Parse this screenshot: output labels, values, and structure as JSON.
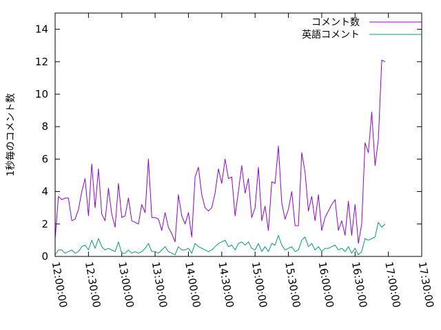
{
  "chart_data": {
    "type": "line",
    "title": "",
    "xlabel": "",
    "ylabel": "1秒毎のコメント数",
    "ylim": [
      0,
      15
    ],
    "yticks": [
      0,
      2,
      4,
      6,
      8,
      10,
      12,
      14
    ],
    "xlim": [
      "12:00:00",
      "17:30:00"
    ],
    "xticks": [
      "12:00:00",
      "12:30:00",
      "13:00:00",
      "13:30:00",
      "14:00:00",
      "14:30:00",
      "15:00:00",
      "15:30:00",
      "16:00:00",
      "16:30:00",
      "17:00:00",
      "17:30:00"
    ],
    "grid": false,
    "legend": "top-right",
    "x_start": "12:00:00",
    "x_step_minutes": 3,
    "series": [
      {
        "name": "コメント数",
        "color": "#9400d3",
        "values": [
          1.1,
          3.7,
          3.5,
          3.6,
          3.6,
          2.2,
          2.3,
          2.9,
          4.0,
          4.8,
          2.5,
          5.7,
          3.0,
          5.4,
          2.6,
          2.2,
          4.2,
          2.6,
          1.8,
          4.5,
          2.4,
          2.5,
          3.6,
          2.2,
          2.1,
          2.0,
          3.2,
          2.7,
          6.0,
          2.4,
          2.4,
          2.3,
          1.6,
          2.7,
          1.8,
          1.4,
          0.9,
          3.8,
          2.5,
          2.0,
          2.7,
          1.2,
          4.9,
          5.5,
          3.8,
          3.0,
          2.8,
          3.0,
          3.9,
          5.4,
          4.5,
          6.0,
          4.8,
          4.9,
          2.5,
          4.0,
          5.6,
          3.9,
          4.8,
          2.4,
          3.0,
          5.5,
          2.2,
          3.1,
          1.6,
          4.6,
          4.5,
          6.8,
          3.3,
          2.3,
          2.9,
          4.0,
          1.9,
          1.9,
          6.4,
          5.2,
          2.8,
          3.7,
          2.2,
          3.8,
          1.6,
          2.4,
          2.8,
          3.2,
          3.5,
          1.6,
          2.2,
          1.3,
          3.4,
          1.3,
          3.2,
          0.8,
          2.0,
          7.0,
          6.4,
          8.9,
          5.6,
          7.2,
          12.1,
          12.0
        ]
      },
      {
        "name": "英語コメント",
        "color": "#009e73",
        "values": [
          0.1,
          0.4,
          0.4,
          0.2,
          0.3,
          0.4,
          0.2,
          0.3,
          0.6,
          0.7,
          0.4,
          1.0,
          0.5,
          1.1,
          0.6,
          0.4,
          0.5,
          0.4,
          0.3,
          0.9,
          0.2,
          0.2,
          0.4,
          0.2,
          0.3,
          0.2,
          0.3,
          0.5,
          0.8,
          0.3,
          0.3,
          0.2,
          0.4,
          0.6,
          0.3,
          0.2,
          0.1,
          0.6,
          0.4,
          0.4,
          0.5,
          0.2,
          0.8,
          0.6,
          0.5,
          0.4,
          0.3,
          0.4,
          0.6,
          0.8,
          0.9,
          1.0,
          0.6,
          0.7,
          0.4,
          0.8,
          0.9,
          0.7,
          0.9,
          0.5,
          0.4,
          0.8,
          0.3,
          0.6,
          0.3,
          0.8,
          0.7,
          1.3,
          0.7,
          0.4,
          0.5,
          0.6,
          0.3,
          0.4,
          1.0,
          1.2,
          0.6,
          0.8,
          0.4,
          0.6,
          0.3,
          0.5,
          0.5,
          0.6,
          0.7,
          0.4,
          0.5,
          0.3,
          0.6,
          0.2,
          0.5,
          0.1,
          0.3,
          1.1,
          1.0,
          1.1,
          1.2,
          2.1,
          1.8,
          2.0
        ]
      }
    ]
  }
}
